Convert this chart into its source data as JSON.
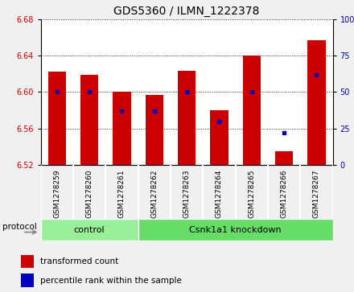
{
  "title": "GDS5360 / ILMN_1222378",
  "samples": [
    "GSM1278259",
    "GSM1278260",
    "GSM1278261",
    "GSM1278262",
    "GSM1278263",
    "GSM1278264",
    "GSM1278265",
    "GSM1278266",
    "GSM1278267"
  ],
  "red_values": [
    6.622,
    6.619,
    6.6,
    6.597,
    6.623,
    6.58,
    6.64,
    6.535,
    6.657
  ],
  "blue_values": [
    50,
    50,
    37,
    37,
    50,
    30,
    50,
    22,
    62
  ],
  "y_min": 6.52,
  "y_max": 6.68,
  "y_ticks": [
    6.52,
    6.56,
    6.6,
    6.64,
    6.68
  ],
  "right_y_ticks": [
    0,
    25,
    50,
    75,
    100
  ],
  "bar_bottom": 6.52,
  "bar_color": "#cc0000",
  "dot_color": "#0000bb",
  "bar_width": 0.55,
  "protocol_label": "protocol",
  "legend_red": "transformed count",
  "legend_blue": "percentile rank within the sample",
  "control_color": "#99ee99",
  "knockdown_color": "#66dd66",
  "fig_bg": "#f0f0f0",
  "plot_bg": "#ffffff",
  "xtick_bg": "#d8d8d8",
  "title_fontsize": 10,
  "tick_fontsize": 7,
  "sample_fontsize": 6.5,
  "group_fontsize": 8,
  "legend_fontsize": 7.5
}
